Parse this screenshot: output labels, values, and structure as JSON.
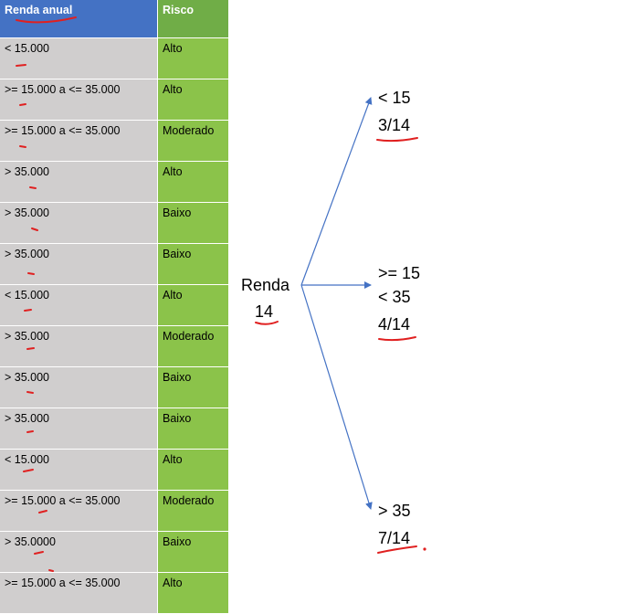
{
  "table": {
    "headers": [
      "Renda anual",
      "Risco"
    ],
    "rows": [
      [
        "< 15.000",
        "Alto"
      ],
      [
        ">= 15.000 a <= 35.000",
        "Alto"
      ],
      [
        ">= 15.000 a <= 35.000",
        "Moderado"
      ],
      [
        "> 35.000",
        "Alto"
      ],
      [
        "> 35.000",
        "Baixo"
      ],
      [
        "> 35.000",
        "Baixo"
      ],
      [
        "< 15.000",
        "Alto"
      ],
      [
        "> 35.000",
        "Moderado"
      ],
      [
        "> 35.000",
        "Baixo"
      ],
      [
        "> 35.000",
        "Baixo"
      ],
      [
        "< 15.000",
        "Alto"
      ],
      [
        ">= 15.000 a <= 35.000",
        "Moderado"
      ],
      [
        "> 35.0000",
        "Baixo"
      ],
      [
        ">= 15.000 a <= 35.000",
        "Alto"
      ]
    ]
  },
  "tree": {
    "root": {
      "label": "Renda",
      "count": "14"
    },
    "branches": [
      {
        "lines": [
          "< 15"
        ],
        "fraction": "3/14"
      },
      {
        "lines": [
          ">= 15",
          "< 35"
        ],
        "fraction": "4/14"
      },
      {
        "lines": [
          "> 35"
        ],
        "fraction": "7/14"
      }
    ]
  },
  "colors": {
    "header_blue": "#4472c4",
    "header_green": "#70ad47",
    "cell_gray": "#d0cece",
    "cell_green": "#8bc34a",
    "arrow": "#4472c4",
    "annotation_red": "#e02020"
  }
}
